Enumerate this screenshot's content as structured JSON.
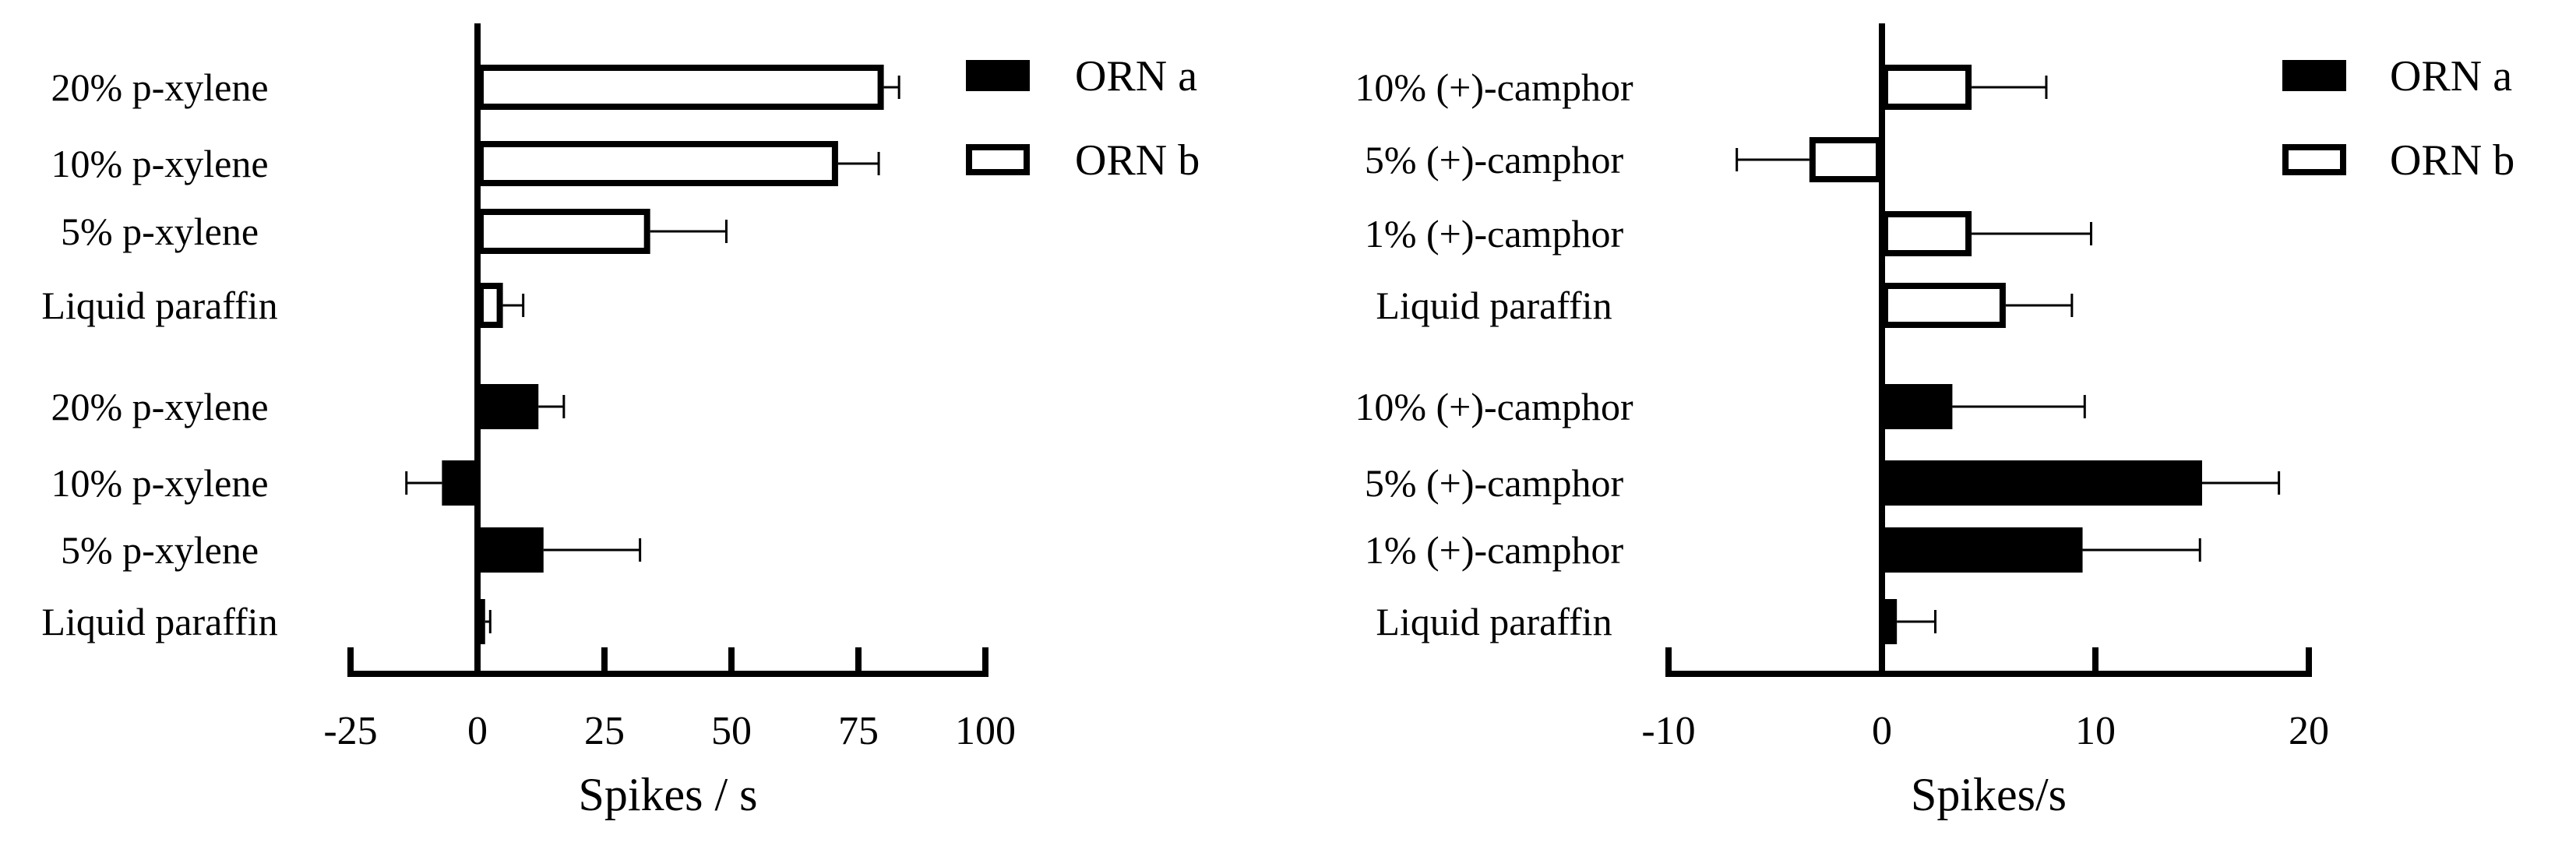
{
  "chart_data": [
    {
      "type": "bar",
      "orientation": "horizontal",
      "title": "",
      "xlabel": "Spikes / s",
      "ylabel": "",
      "xlim": [
        -25,
        100
      ],
      "xticks": [
        -25,
        0,
        25,
        50,
        75,
        100
      ],
      "xtick_labels": [
        "-25",
        "0",
        "25",
        "50",
        "75",
        "100"
      ],
      "grid": false,
      "legend_position": "top-right",
      "legend": [
        {
          "name": "ORN a",
          "fill": "#000000"
        },
        {
          "name": "ORN b",
          "fill": "#ffffff"
        }
      ],
      "bars": [
        {
          "label": "20% p-xylene",
          "series": "ORN b",
          "value": 80,
          "err": 3
        },
        {
          "label": "10% p-xylene",
          "series": "ORN b",
          "value": 71,
          "err": 8
        },
        {
          "label": "5% p-xylene",
          "series": "ORN b",
          "value": 34,
          "err": 15
        },
        {
          "label": "Liquid paraffin",
          "series": "ORN b",
          "value": 5,
          "err": 4
        },
        {
          "label": "20% p-xylene",
          "series": "ORN a",
          "value": 12,
          "err": 5
        },
        {
          "label": "10% p-xylene",
          "series": "ORN a",
          "value": -7,
          "err": 7
        },
        {
          "label": "5% p-xylene",
          "series": "ORN a",
          "value": 13,
          "err": 19
        },
        {
          "label": "Liquid paraffin",
          "series": "ORN a",
          "value": 1.5,
          "err": 1
        }
      ]
    },
    {
      "type": "bar",
      "orientation": "horizontal",
      "title": "",
      "xlabel": "Spikes/s",
      "ylabel": "",
      "xlim": [
        -10,
        20
      ],
      "xticks": [
        -10,
        0,
        10,
        20
      ],
      "xtick_labels": [
        "-10",
        "0",
        "10",
        "20"
      ],
      "grid": false,
      "legend_position": "top-right",
      "legend": [
        {
          "name": "ORN a",
          "fill": "#000000"
        },
        {
          "name": "ORN b",
          "fill": "#ffffff"
        }
      ],
      "bars": [
        {
          "label": "10% (+)-camphor",
          "series": "ORN b",
          "value": 4.2,
          "err": 3.5
        },
        {
          "label": "5% (+)-camphor",
          "series": "ORN b",
          "value": -3.4,
          "err": 3.4
        },
        {
          "label": "1% (+)-camphor",
          "series": "ORN b",
          "value": 4.2,
          "err": 5.6
        },
        {
          "label": "Liquid paraffin",
          "series": "ORN b",
          "value": 5.8,
          "err": 3.1
        },
        {
          "label": "10% (+)-camphor",
          "series": "ORN a",
          "value": 3.3,
          "err": 6.2
        },
        {
          "label": "5% (+)-camphor",
          "series": "ORN a",
          "value": 15,
          "err": 3.6
        },
        {
          "label": "1% (+)-camphor",
          "series": "ORN a",
          "value": 9.4,
          "err": 5.5
        },
        {
          "label": "Liquid paraffin",
          "series": "ORN a",
          "value": 0.7,
          "err": 1.8
        }
      ]
    }
  ]
}
